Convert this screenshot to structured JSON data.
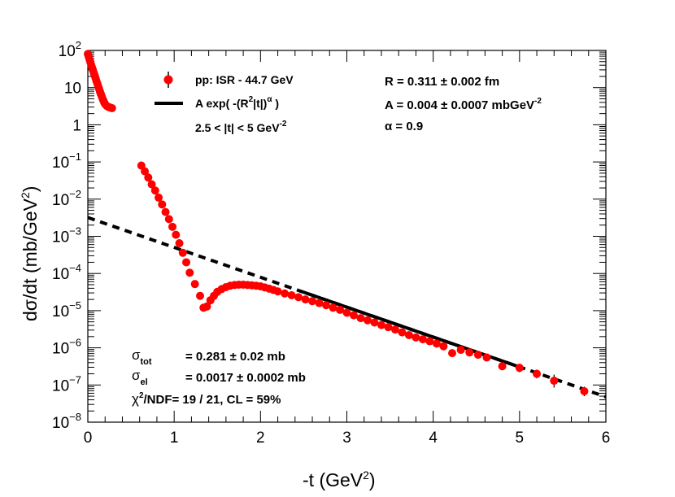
{
  "chart_data": {
    "type": "scatter",
    "title": "",
    "xlabel": {
      "main": "-t (GeV",
      "sup": "2",
      "end": ")"
    },
    "ylabel": {
      "main": "dσ/dt (mb/GeV",
      "sup": "2",
      "end": ")"
    },
    "x_range": [
      0,
      6
    ],
    "y_range": [
      1e-08,
      100
    ],
    "y_scale": "log",
    "grid": false,
    "legend_position": "top-left",
    "x_ticks": [
      "0",
      "1",
      "2",
      "3",
      "4",
      "5",
      "6"
    ],
    "y_ticks": [
      {
        "value": 100,
        "base": "10",
        "exp": "2"
      },
      {
        "value": 10,
        "base": "10",
        "exp": ""
      },
      {
        "value": 1,
        "base": "1",
        "exp": ""
      },
      {
        "value": 0.1,
        "base": "10",
        "exp": "−1"
      },
      {
        "value": 0.01,
        "base": "10",
        "exp": "−2"
      },
      {
        "value": 0.001,
        "base": "10",
        "exp": "−3"
      },
      {
        "value": 0.0001,
        "base": "10",
        "exp": "−4"
      },
      {
        "value": 1e-05,
        "base": "10",
        "exp": "−5"
      },
      {
        "value": 1e-06,
        "base": "10",
        "exp": "−6"
      },
      {
        "value": 1e-07,
        "base": "10",
        "exp": "−7"
      },
      {
        "value": 1e-08,
        "base": "10",
        "exp": "−8"
      }
    ],
    "series": [
      {
        "name": "pp: ISR - 44.7 GeV",
        "kind": "data",
        "color": "#ff0000",
        "points": [
          [
            0.0,
            80
          ],
          [
            0.01,
            68
          ],
          [
            0.02,
            57
          ],
          [
            0.03,
            48
          ],
          [
            0.04,
            40
          ],
          [
            0.05,
            34
          ],
          [
            0.06,
            29
          ],
          [
            0.07,
            24.5
          ],
          [
            0.08,
            21
          ],
          [
            0.09,
            17.8
          ],
          [
            0.1,
            15
          ],
          [
            0.11,
            12.8
          ],
          [
            0.12,
            10.9
          ],
          [
            0.13,
            9.3
          ],
          [
            0.14,
            7.9
          ],
          [
            0.15,
            6.8
          ],
          [
            0.16,
            5.9
          ],
          [
            0.17,
            5.1
          ],
          [
            0.18,
            4.5
          ],
          [
            0.19,
            4.0
          ],
          [
            0.2,
            3.6
          ],
          [
            0.22,
            3.2
          ],
          [
            0.24,
            3.0
          ],
          [
            0.26,
            2.9
          ],
          [
            0.28,
            2.8
          ],
          [
            0.62,
            0.08
          ],
          [
            0.66,
            0.056
          ],
          [
            0.7,
            0.038
          ],
          [
            0.74,
            0.025
          ],
          [
            0.78,
            0.017
          ],
          [
            0.82,
            0.011
          ],
          [
            0.86,
            0.0072
          ],
          [
            0.9,
            0.0045
          ],
          [
            0.94,
            0.0029
          ],
          [
            0.98,
            0.0018
          ],
          [
            1.02,
            0.0011
          ],
          [
            1.06,
            0.00065
          ],
          [
            1.1,
            0.00036
          ],
          [
            1.14,
            0.0002
          ],
          [
            1.18,
            0.000105
          ],
          [
            1.24,
            5.2e-05
          ],
          [
            1.3,
            2.5e-05
          ],
          [
            1.34,
            1.2e-05
          ],
          [
            1.38,
            1.3e-05
          ],
          [
            1.42,
            1.9e-05
          ],
          [
            1.46,
            2.5e-05
          ],
          [
            1.5,
            3.2e-05
          ],
          [
            1.55,
            3.8e-05
          ],
          [
            1.6,
            4.3e-05
          ],
          [
            1.65,
            4.7e-05
          ],
          [
            1.7,
            4.9e-05
          ],
          [
            1.75,
            5e-05
          ],
          [
            1.8,
            5e-05
          ],
          [
            1.85,
            4.9e-05
          ],
          [
            1.9,
            4.8e-05
          ],
          [
            1.95,
            4.7e-05
          ],
          [
            2.0,
            4.5e-05
          ],
          [
            2.05,
            4.2e-05
          ],
          [
            2.1,
            3.9e-05
          ],
          [
            2.15,
            3.6e-05
          ],
          [
            2.2,
            3.3e-05
          ],
          [
            2.28,
            2.9e-05
          ],
          [
            2.36,
            2.6e-05
          ],
          [
            2.44,
            2.3e-05
          ],
          [
            2.52,
            2e-05
          ],
          [
            2.6,
            1.8e-05
          ],
          [
            2.68,
            1.6e-05
          ],
          [
            2.76,
            1.4e-05
          ],
          [
            2.84,
            1.2e-05
          ],
          [
            2.92,
            1.05e-05
          ],
          [
            3.0,
            8.8e-06
          ],
          [
            3.08,
            7.5e-06
          ],
          [
            3.16,
            6.3e-06
          ],
          [
            3.24,
            5.5e-06
          ],
          [
            3.32,
            4.8e-06
          ],
          [
            3.4,
            4.1e-06
          ],
          [
            3.48,
            3.6e-06
          ],
          [
            3.56,
            3.1e-06
          ],
          [
            3.64,
            2.6e-06
          ],
          [
            3.72,
            2.2e-06
          ],
          [
            3.8,
            1.9e-06
          ],
          [
            3.88,
            1.7e-06
          ],
          [
            3.96,
            1.5e-06
          ],
          [
            4.04,
            1.3e-06
          ],
          [
            4.12,
            1.1e-06
          ],
          [
            4.22,
            7.2e-07
          ],
          [
            4.32,
            8.8e-07
          ],
          [
            4.42,
            7.5e-07
          ],
          [
            4.52,
            6.5e-07
          ],
          [
            4.62,
            5.5e-07
          ],
          [
            4.8,
            3.2e-07
          ],
          [
            5.0,
            2.9e-07
          ],
          [
            5.2,
            2e-07
          ],
          [
            5.4,
            1.3e-07
          ],
          [
            5.75,
            6.8e-08
          ]
        ],
        "error_bars": [
          [
            4.22,
            5.8e-07,
            9e-07
          ],
          [
            4.8,
            2.5e-07,
            4e-07
          ],
          [
            5.0,
            2.2e-07,
            3.7e-07
          ],
          [
            5.2,
            1.5e-07,
            2.6e-07
          ],
          [
            5.4,
            8.5e-08,
            1.9e-07
          ],
          [
            5.75,
            5e-08,
            9e-08
          ]
        ]
      },
      {
        "name": "A exp( -(R^2|t|)^α )",
        "kind": "fit",
        "color": "#000000",
        "A": 0.004,
        "R": 0.311,
        "alpha": 0.9,
        "solid_range": [
          2.5,
          5.0
        ],
        "dashed_range": [
          0.0,
          6.0
        ],
        "dashed_start_value": 0.0032,
        "dashed_end_value": 4.8e-08
      }
    ],
    "legend": {
      "data_label": "pp: ISR - 44.7 GeV",
      "fit_label_main": "A exp( -(R",
      "fit_label_sup1": "2",
      "fit_label_mid": "|t|)",
      "fit_label_sup2": "α",
      "fit_label_end": " )",
      "range_label_main": "2.5 < |t| < 5  GeV",
      "range_label_sup": "-2"
    },
    "fit_params": {
      "r_text": "R = 0.311 ± 0.002 fm",
      "a_text_main": "A = 0.004  ± 0.0007 mbGeV",
      "a_text_sup": "-2",
      "alpha_text": "α  = 0.9"
    },
    "info": {
      "sigma_tot_sym": "σ",
      "sigma_tot_sub": "tot",
      "sigma_tot_val": "= 0.281 ± 0.02 mb",
      "sigma_el_sym": "σ",
      "sigma_el_sub": "el",
      "sigma_el_val": "= 0.0017 ± 0.0002 mb",
      "chi_sym": "χ",
      "chi_sup": "2",
      "chi_rest": "/NDF=  19 / 21,  CL = 59%"
    }
  }
}
